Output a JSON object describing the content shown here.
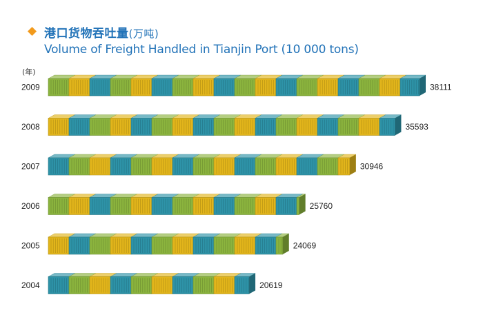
{
  "header": {
    "title_cn": "港口货物吞吐量",
    "title_cn_unit": "(万吨)",
    "title_en": "Volume of Freight Handled in Tianjin Port (10 000 tons)",
    "bullet_icon": "diamond-icon"
  },
  "axis": {
    "y_unit": "(年)"
  },
  "colors": {
    "blue": "#2e93a8",
    "yellow": "#e2b51b",
    "green": "#8bb43e",
    "title": "#2273b8",
    "bullet": "#f29a1c"
  },
  "chart_data": {
    "type": "bar",
    "orientation": "horizontal",
    "title": "Volume of Freight Handled in Tianjin Port (10 000 tons)",
    "xlabel": "10 000 tons",
    "ylabel": "(年)",
    "categories": [
      "2009",
      "2008",
      "2007",
      "2006",
      "2005",
      "2004"
    ],
    "values": [
      38111,
      35593,
      30946,
      25760,
      24069,
      20619
    ],
    "data_labels": [
      "38111",
      "35593",
      "30946",
      "25760",
      "24069",
      "20619"
    ],
    "xlim": [
      0,
      38111
    ],
    "grid": false,
    "legend": "none"
  }
}
